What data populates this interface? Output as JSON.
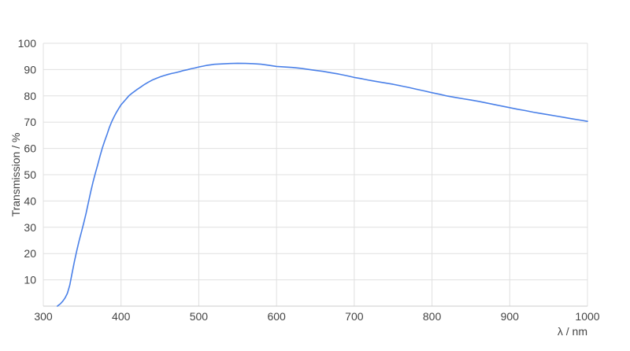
{
  "colors": {
    "background": "#ffffff",
    "grid": "#e0e0e0",
    "axis_line": "#cccccc",
    "axis_text": "#444444",
    "line": "#4a80e8"
  },
  "chart_data": {
    "type": "line",
    "title": "",
    "xlabel": "λ / nm",
    "ylabel": "Transmission / %",
    "xlim": [
      300,
      1000
    ],
    "ylim": [
      0,
      100
    ],
    "x_ticks": [
      300,
      400,
      500,
      600,
      700,
      800,
      900,
      1000
    ],
    "y_ticks": [
      10,
      20,
      30,
      40,
      50,
      60,
      70,
      80,
      90,
      100
    ],
    "grid": true,
    "legend": "none",
    "series": [
      {
        "name": "transmission",
        "color": "#4a80e8",
        "x": [
          318,
          322,
          325,
          328,
          331,
          334,
          337,
          340,
          343,
          346,
          349,
          352,
          355,
          358,
          361,
          364,
          367,
          370,
          373,
          376,
          379,
          382,
          385,
          388,
          391,
          394,
          397,
          400,
          405,
          410,
          415,
          420,
          425,
          430,
          435,
          440,
          445,
          450,
          455,
          460,
          465,
          470,
          475,
          480,
          485,
          490,
          495,
          500,
          505,
          510,
          515,
          520,
          530,
          540,
          550,
          560,
          570,
          580,
          590,
          600,
          610,
          620,
          630,
          640,
          650,
          660,
          670,
          680,
          690,
          700,
          710,
          720,
          730,
          740,
          750,
          760,
          770,
          780,
          790,
          800,
          810,
          820,
          830,
          840,
          850,
          860,
          870,
          880,
          890,
          900,
          910,
          920,
          930,
          940,
          950,
          960,
          970,
          980,
          990,
          1000
        ],
        "y": [
          0,
          0.9,
          1.9,
          3.1,
          4.9,
          8,
          12.5,
          17,
          21,
          24.8,
          28.2,
          31.6,
          35.3,
          39.5,
          43.5,
          47.3,
          50.6,
          53.8,
          57.2,
          60.2,
          62.9,
          65.3,
          68,
          70.2,
          72,
          73.7,
          75.2,
          76.6,
          78.3,
          80,
          81.2,
          82.3,
          83.3,
          84.3,
          85.2,
          86,
          86.6,
          87.2,
          87.7,
          88.1,
          88.5,
          88.8,
          89.2,
          89.6,
          89.9,
          90.3,
          90.6,
          91,
          91.3,
          91.6,
          91.8,
          92,
          92.15,
          92.3,
          92.4,
          92.35,
          92.25,
          92.05,
          91.65,
          91.2,
          91,
          90.8,
          90.5,
          90.1,
          89.7,
          89.3,
          88.8,
          88.3,
          87.7,
          87,
          86.5,
          85.9,
          85.4,
          84.9,
          84.4,
          83.8,
          83.2,
          82.5,
          81.9,
          81.2,
          80.6,
          79.9,
          79.4,
          78.9,
          78.4,
          77.9,
          77.3,
          76.7,
          76.1,
          75.5,
          74.9,
          74.4,
          73.8,
          73.3,
          72.8,
          72.3,
          71.8,
          71.3,
          70.8,
          70.3
        ]
      }
    ]
  }
}
